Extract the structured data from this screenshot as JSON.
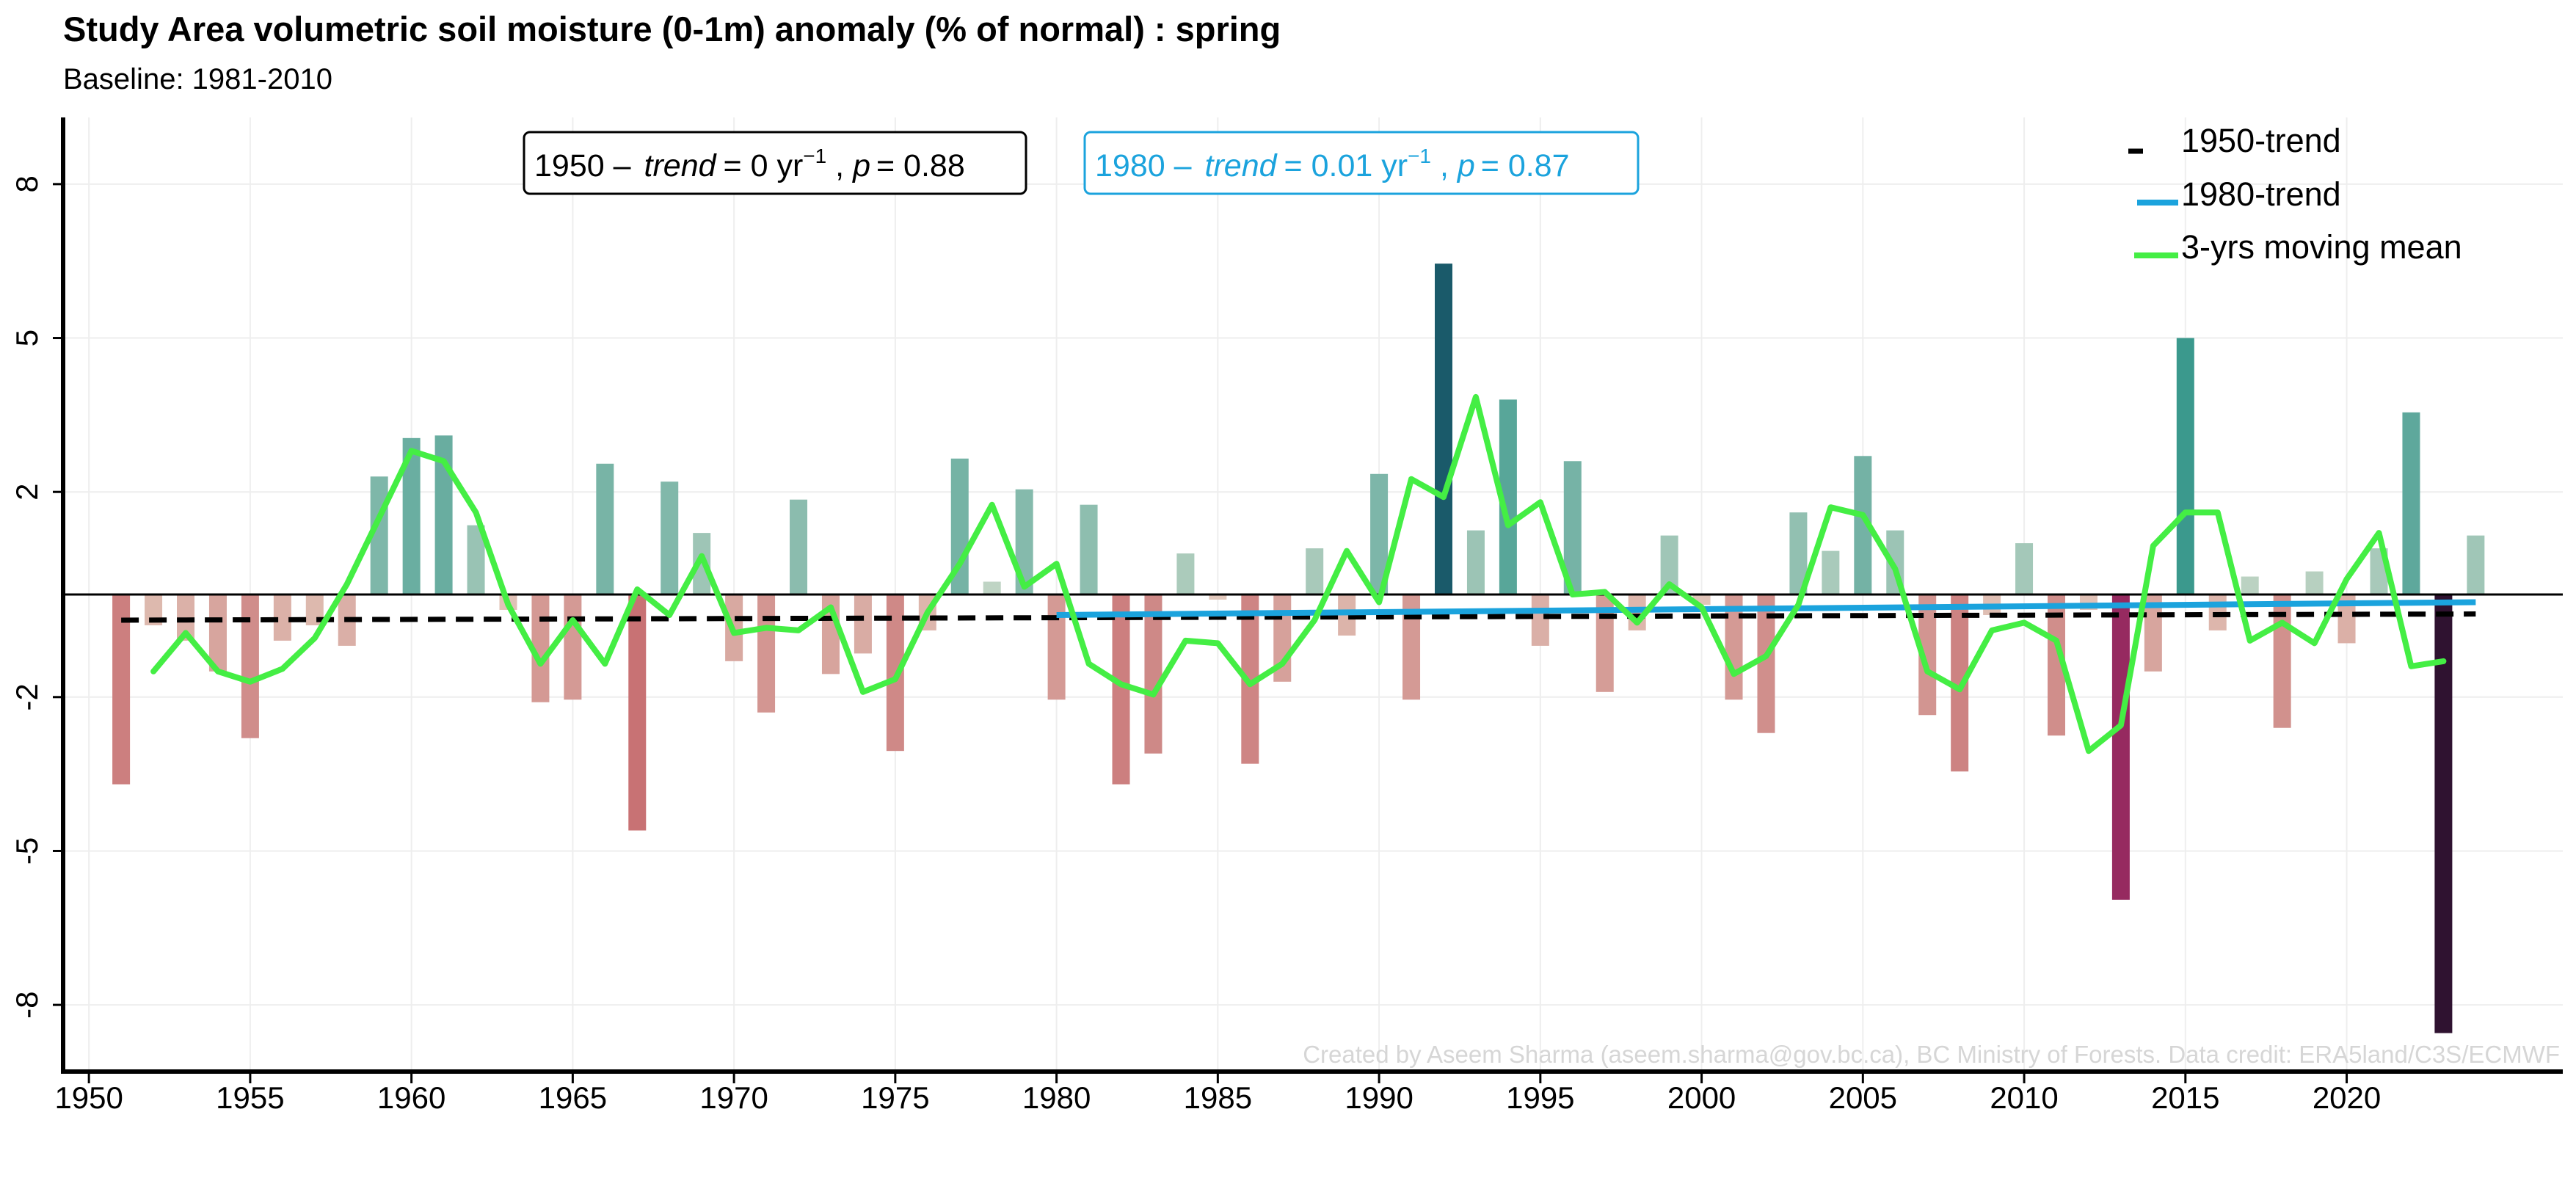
{
  "title": "Study Area volumetric soil moisture (0-1m) anomaly (% of normal) : spring",
  "subtitle": "Baseline: 1981-2010",
  "credit": "Created by Aseem Sharma (aseem.sharma@gov.bc.ca), BC Ministry of Forests. Data credit: ERA5land/C3S/ECMWF",
  "annotations": {
    "trend1950": {
      "period": "1950 –",
      "trend_label": "trend",
      "value": "= 0 yr",
      "exp": "−1",
      "p_label": "p",
      "p_value": "= 0.88",
      "color": "#000000"
    },
    "trend1980": {
      "period": "1980 –",
      "trend_label": "trend",
      "value": "= 0.01 yr",
      "exp": "−1",
      "p_label": "p",
      "p_value": "= 0.87",
      "color": "#1ba3dd"
    }
  },
  "legend": [
    {
      "label": "1950-trend",
      "color": "#000000",
      "style": "dashed"
    },
    {
      "label": "1980-trend",
      "color": "#1ba3dd",
      "style": "solid"
    },
    {
      "label": "3-yrs moving mean",
      "color": "#44ee44",
      "style": "solid"
    }
  ],
  "chart_data": {
    "type": "bar",
    "xlim": [
      1949.2,
      2026.7
    ],
    "ylim": [
      -9.3,
      9.3
    ],
    "yticks": [
      -8,
      -5,
      -2,
      2,
      5,
      8
    ],
    "ytick_labels": [
      "-8",
      "-5",
      "-2",
      "2",
      "5",
      "8"
    ],
    "xticks": [
      1950,
      1955,
      1960,
      1965,
      1970,
      1975,
      1980,
      1985,
      1990,
      1995,
      2000,
      2005,
      2010,
      2015,
      2020
    ],
    "xtick_labels": [
      "1950",
      "1955",
      "1960",
      "1965",
      "1970",
      "1975",
      "1980",
      "1985",
      "1990",
      "1995",
      "2000",
      "2005",
      "2010",
      "2015",
      "2020"
    ],
    "grid": true,
    "legend_position": "top-right",
    "colors": {
      "positive": "#1a8a80",
      "negative": "#b8404a",
      "moving_mean": "#44ee44",
      "trend1950": "#000000",
      "trend1980": "#1ba3dd"
    },
    "years": [
      1951,
      1952,
      1953,
      1954,
      1955,
      1956,
      1957,
      1958,
      1959,
      1960,
      1961,
      1962,
      1963,
      1964,
      1965,
      1966,
      1967,
      1968,
      1969,
      1970,
      1971,
      1972,
      1973,
      1974,
      1975,
      1976,
      1977,
      1978,
      1979,
      1980,
      1981,
      1982,
      1983,
      1984,
      1985,
      1986,
      1987,
      1988,
      1989,
      1990,
      1991,
      1992,
      1993,
      1994,
      1995,
      1996,
      1997,
      1998,
      1999,
      2000,
      2001,
      2002,
      2003,
      2004,
      2005,
      2006,
      2007,
      2008,
      2009,
      2010,
      2011,
      2012,
      2013,
      2014,
      2015,
      2016,
      2017,
      2018,
      2019,
      2020,
      2021,
      2022,
      2023,
      2024
    ],
    "values": [
      -3.7,
      -0.6,
      -0.9,
      -1.5,
      -2.8,
      -0.9,
      -0.6,
      -1.0,
      2.3,
      3.05,
      3.1,
      1.35,
      -0.3,
      -2.1,
      -2.05,
      2.55,
      -4.6,
      2.2,
      1.2,
      -1.3,
      -2.3,
      1.85,
      -1.55,
      -1.15,
      -3.05,
      -0.7,
      2.65,
      0.25,
      2.05,
      -2.05,
      1.75,
      -3.7,
      -3.1,
      0.8,
      -0.1,
      -3.3,
      -1.7,
      0.9,
      -0.8,
      2.35,
      -2.05,
      6.45,
      1.25,
      3.8,
      -1.0,
      2.6,
      -1.9,
      -0.7,
      1.15,
      -0.2,
      -2.05,
      -2.7,
      1.6,
      0.85,
      2.7,
      1.25,
      -2.35,
      -3.45,
      -0.4,
      1.0,
      -2.75,
      -0.3,
      -5.95,
      -1.5,
      5.0,
      -0.7,
      0.35,
      -2.6,
      0.45,
      -0.95,
      0.9,
      3.55,
      -8.55,
      1.15
    ],
    "moving_mean": {
      "years": [
        1952,
        1953,
        1954,
        1955,
        1956,
        1957,
        1958,
        1959,
        1960,
        1961,
        1962,
        1963,
        1964,
        1965,
        1966,
        1967,
        1968,
        1969,
        1970,
        1971,
        1972,
        1973,
        1974,
        1975,
        1976,
        1977,
        1978,
        1979,
        1980,
        1981,
        1982,
        1983,
        1984,
        1985,
        1986,
        1987,
        1988,
        1989,
        1990,
        1991,
        1992,
        1993,
        1994,
        1995,
        1996,
        1997,
        1998,
        1999,
        2000,
        2001,
        2002,
        2003,
        2004,
        2005,
        2006,
        2007,
        2008,
        2009,
        2010,
        2011,
        2012,
        2013,
        2014,
        2015,
        2016,
        2017,
        2018,
        2019,
        2020,
        2021,
        2022,
        2023
      ],
      "values": [
        -1.5,
        -0.75,
        -1.5,
        -1.7,
        -1.45,
        -0.85,
        0.2,
        1.5,
        2.8,
        2.6,
        1.6,
        -0.2,
        -1.35,
        -0.5,
        -1.35,
        0.1,
        -0.4,
        0.75,
        -0.75,
        -0.65,
        -0.7,
        -0.25,
        -1.9,
        -1.65,
        -0.35,
        0.6,
        1.75,
        0.15,
        0.6,
        -1.35,
        -1.75,
        -1.95,
        -0.9,
        -0.95,
        -1.75,
        -1.35,
        -0.5,
        0.85,
        -0.15,
        2.25,
        1.9,
        3.85,
        1.35,
        1.8,
        0.0,
        0.05,
        -0.55,
        0.2,
        -0.25,
        -1.55,
        -1.2,
        -0.2,
        1.7,
        1.55,
        0.5,
        -1.5,
        -1.85,
        -0.7,
        -0.55,
        -0.9,
        -3.05,
        -2.55,
        0.95,
        1.6,
        1.6,
        -0.9,
        -0.55,
        -0.95,
        0.3,
        1.2,
        -1.4,
        -1.3
      ]
    },
    "trend1950": {
      "x": [
        1951,
        2024
      ],
      "y": [
        -0.5,
        -0.38
      ]
    },
    "trend1980": {
      "x": [
        1980,
        2024
      ],
      "y": [
        -0.4,
        -0.15
      ]
    }
  }
}
